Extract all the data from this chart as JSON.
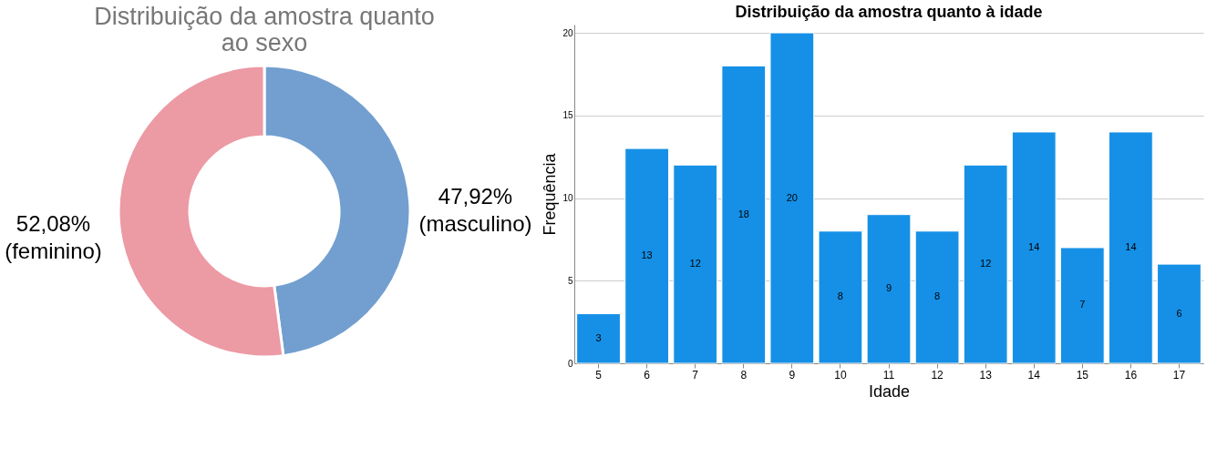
{
  "chart_data": [
    {
      "type": "donut",
      "title": "Distribuição da amostra quanto ao sexo",
      "categories": [
        "(masculino)",
        "(feminino)"
      ],
      "values": [
        47.92,
        52.08
      ],
      "value_labels": [
        "47,92%",
        "52,08%"
      ],
      "colors": [
        "#729fcf",
        "#ec9aa4"
      ]
    },
    {
      "type": "bar",
      "title": "Distribuição da amostra quanto à idade",
      "xlabel": "Idade",
      "ylabel": "Frequência",
      "categories": [
        "5",
        "6",
        "7",
        "8",
        "9",
        "10",
        "11",
        "12",
        "13",
        "14",
        "15",
        "16",
        "17"
      ],
      "values": [
        3,
        13,
        12,
        18,
        20,
        8,
        9,
        8,
        12,
        14,
        7,
        14,
        6
      ],
      "color": "#1590e6",
      "ylim": [
        0,
        20.5
      ],
      "yticks": [
        0,
        5,
        10,
        15,
        20
      ],
      "grid": "y",
      "data_labels": true
    }
  ]
}
